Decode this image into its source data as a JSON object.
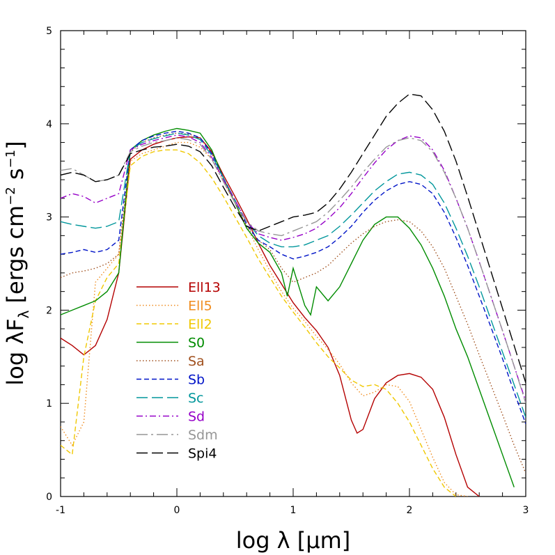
{
  "chart_data": {
    "type": "line",
    "xlabel": "log λ [μm]",
    "ylabel": "log λF",
    "ylabel_sub": "λ",
    "ylabel_units": "[ergs cm",
    "ylabel_exp1": "−2",
    "ylabel_mid": " s",
    "ylabel_exp2": "−1",
    "ylabel_end": "]",
    "xlim": [
      -1,
      3
    ],
    "ylim": [
      0,
      5
    ],
    "xticks": [
      -1,
      0,
      1,
      2,
      3
    ],
    "yticks": [
      0,
      1,
      2,
      3,
      4,
      5
    ],
    "xtick_labels": [
      "-1",
      "0",
      "1",
      "2",
      "3"
    ],
    "ytick_labels": [
      "0",
      "1",
      "2",
      "3",
      "4",
      "5"
    ],
    "grid": false,
    "legend_position": "lower-left",
    "series": [
      {
        "name": "Ell13",
        "color": "#b40000",
        "dash": "solid",
        "x": [
          -1.0,
          -0.9,
          -0.8,
          -0.7,
          -0.6,
          -0.5,
          -0.4,
          -0.3,
          -0.2,
          -0.1,
          0.0,
          0.1,
          0.2,
          0.3,
          0.4,
          0.5,
          0.6,
          0.7,
          0.8,
          0.9,
          1.0,
          1.1,
          1.2,
          1.3,
          1.4,
          1.5,
          1.55,
          1.6,
          1.7,
          1.8,
          1.9,
          2.0,
          2.1,
          2.2,
          2.3,
          2.4,
          2.5,
          2.6
        ],
        "y": [
          1.7,
          1.62,
          1.52,
          1.62,
          1.9,
          2.4,
          3.62,
          3.72,
          3.78,
          3.82,
          3.85,
          3.86,
          3.85,
          3.7,
          3.45,
          3.22,
          2.98,
          2.72,
          2.48,
          2.28,
          2.08,
          1.92,
          1.78,
          1.6,
          1.3,
          0.82,
          0.68,
          0.72,
          1.05,
          1.22,
          1.3,
          1.32,
          1.28,
          1.15,
          0.85,
          0.45,
          0.1,
          0.0
        ]
      },
      {
        "name": "Ell5",
        "color": "#f08c1e",
        "dash": "dotted",
        "x": [
          -1.0,
          -0.9,
          -0.8,
          -0.7,
          -0.6,
          -0.5,
          -0.4,
          -0.3,
          -0.2,
          -0.1,
          0.0,
          0.1,
          0.2,
          0.3,
          0.4,
          0.5,
          0.6,
          0.7,
          0.8,
          0.9,
          1.0,
          1.1,
          1.2,
          1.3,
          1.4,
          1.5,
          1.6,
          1.7,
          1.8,
          1.9,
          2.0,
          2.1,
          2.2,
          2.3,
          2.4,
          2.5
        ],
        "y": [
          0.75,
          0.55,
          0.8,
          2.3,
          2.45,
          2.6,
          3.6,
          3.68,
          3.72,
          3.76,
          3.8,
          3.8,
          3.75,
          3.62,
          3.38,
          3.15,
          2.9,
          2.65,
          2.42,
          2.2,
          2.02,
          1.88,
          1.72,
          1.58,
          1.42,
          1.22,
          1.08,
          1.12,
          1.2,
          1.18,
          1.02,
          0.72,
          0.42,
          0.15,
          0.02,
          0.0
        ]
      },
      {
        "name": "Ell2",
        "color": "#f0c800",
        "dash": "dashed",
        "x": [
          -1.0,
          -0.9,
          -0.8,
          -0.7,
          -0.6,
          -0.5,
          -0.4,
          -0.3,
          -0.2,
          -0.1,
          0.0,
          0.1,
          0.2,
          0.3,
          0.4,
          0.5,
          0.6,
          0.7,
          0.8,
          0.9,
          1.0,
          1.1,
          1.2,
          1.3,
          1.4,
          1.5,
          1.6,
          1.7,
          1.8,
          1.9,
          2.0,
          2.1,
          2.2,
          2.3,
          2.4
        ],
        "y": [
          0.55,
          0.45,
          1.5,
          2.1,
          2.35,
          2.5,
          3.55,
          3.65,
          3.7,
          3.72,
          3.72,
          3.68,
          3.58,
          3.42,
          3.22,
          3.0,
          2.78,
          2.55,
          2.35,
          2.15,
          1.98,
          1.82,
          1.65,
          1.5,
          1.38,
          1.25,
          1.18,
          1.2,
          1.15,
          1.0,
          0.8,
          0.55,
          0.3,
          0.1,
          0.0
        ]
      },
      {
        "name": "S0",
        "color": "#008c00",
        "dash": "solid",
        "x": [
          -1.0,
          -0.9,
          -0.8,
          -0.7,
          -0.6,
          -0.5,
          -0.4,
          -0.3,
          -0.2,
          -0.1,
          0.0,
          0.1,
          0.2,
          0.3,
          0.4,
          0.5,
          0.6,
          0.7,
          0.8,
          0.9,
          0.95,
          1.0,
          1.1,
          1.15,
          1.2,
          1.3,
          1.4,
          1.5,
          1.6,
          1.7,
          1.8,
          1.9,
          2.0,
          2.1,
          2.2,
          2.3,
          2.4,
          2.5,
          2.6,
          2.7,
          2.8,
          2.9
        ],
        "y": [
          1.95,
          2.0,
          2.05,
          2.1,
          2.2,
          2.4,
          3.72,
          3.82,
          3.88,
          3.92,
          3.95,
          3.93,
          3.9,
          3.72,
          3.42,
          3.15,
          2.88,
          2.72,
          2.62,
          2.4,
          2.15,
          2.45,
          2.05,
          1.95,
          2.25,
          2.1,
          2.25,
          2.5,
          2.75,
          2.92,
          3.0,
          3.0,
          2.88,
          2.7,
          2.45,
          2.15,
          1.8,
          1.5,
          1.15,
          0.8,
          0.45,
          0.1
        ]
      },
      {
        "name": "Sa",
        "color": "#a0501e",
        "dash": "dotted",
        "x": [
          -1.0,
          -0.9,
          -0.8,
          -0.7,
          -0.6,
          -0.5,
          -0.4,
          -0.3,
          -0.2,
          -0.1,
          0.0,
          0.1,
          0.2,
          0.3,
          0.4,
          0.5,
          0.6,
          0.7,
          0.8,
          0.9,
          1.0,
          1.1,
          1.2,
          1.3,
          1.4,
          1.5,
          1.6,
          1.7,
          1.8,
          1.9,
          2.0,
          2.1,
          2.2,
          2.3,
          2.4,
          2.5,
          2.6,
          2.7,
          2.8,
          2.9,
          3.0
        ],
        "y": [
          2.35,
          2.4,
          2.42,
          2.45,
          2.5,
          2.6,
          3.7,
          3.8,
          3.85,
          3.88,
          3.9,
          3.89,
          3.85,
          3.68,
          3.4,
          3.15,
          2.9,
          2.75,
          2.65,
          2.45,
          2.3,
          2.35,
          2.4,
          2.48,
          2.6,
          2.72,
          2.82,
          2.9,
          2.95,
          2.97,
          2.95,
          2.85,
          2.68,
          2.45,
          2.15,
          1.85,
          1.52,
          1.2,
          0.88,
          0.55,
          0.25
        ]
      },
      {
        "name": "Sb",
        "color": "#0014c8",
        "dash": "dashed",
        "x": [
          -1.0,
          -0.9,
          -0.8,
          -0.7,
          -0.6,
          -0.5,
          -0.4,
          -0.3,
          -0.2,
          -0.1,
          0.0,
          0.1,
          0.2,
          0.3,
          0.4,
          0.5,
          0.6,
          0.7,
          0.8,
          0.9,
          1.0,
          1.1,
          1.2,
          1.3,
          1.4,
          1.5,
          1.6,
          1.7,
          1.8,
          1.9,
          2.0,
          2.1,
          2.2,
          2.3,
          2.4,
          2.5,
          2.6,
          2.7,
          2.8,
          2.9,
          3.0
        ],
        "y": [
          2.6,
          2.62,
          2.65,
          2.62,
          2.65,
          2.75,
          3.72,
          3.82,
          3.87,
          3.9,
          3.92,
          3.9,
          3.85,
          3.68,
          3.42,
          3.18,
          2.92,
          2.75,
          2.68,
          2.6,
          2.55,
          2.58,
          2.62,
          2.68,
          2.78,
          2.9,
          3.05,
          3.18,
          3.28,
          3.35,
          3.38,
          3.35,
          3.25,
          3.05,
          2.78,
          2.48,
          2.15,
          1.82,
          1.48,
          1.12,
          0.78
        ]
      },
      {
        "name": "Sc",
        "color": "#00969b",
        "dash": "longdash",
        "x": [
          -1.0,
          -0.9,
          -0.8,
          -0.7,
          -0.6,
          -0.5,
          -0.4,
          -0.3,
          -0.2,
          -0.1,
          0.0,
          0.1,
          0.2,
          0.3,
          0.4,
          0.5,
          0.6,
          0.7,
          0.8,
          0.9,
          1.0,
          1.1,
          1.2,
          1.3,
          1.4,
          1.5,
          1.6,
          1.7,
          1.8,
          1.9,
          2.0,
          2.1,
          2.2,
          2.3,
          2.4,
          2.5,
          2.6,
          2.7,
          2.8,
          2.9,
          3.0
        ],
        "y": [
          2.95,
          2.92,
          2.9,
          2.88,
          2.9,
          2.95,
          3.72,
          3.8,
          3.84,
          3.87,
          3.9,
          3.88,
          3.83,
          3.66,
          3.42,
          3.18,
          2.95,
          2.8,
          2.72,
          2.68,
          2.68,
          2.7,
          2.75,
          2.8,
          2.9,
          3.02,
          3.15,
          3.28,
          3.38,
          3.46,
          3.48,
          3.45,
          3.35,
          3.15,
          2.88,
          2.58,
          2.25,
          1.9,
          1.55,
          1.2,
          0.85
        ]
      },
      {
        "name": "Sd",
        "color": "#9600c8",
        "dash": "dashdot",
        "x": [
          -1.0,
          -0.9,
          -0.8,
          -0.7,
          -0.6,
          -0.5,
          -0.4,
          -0.3,
          -0.2,
          -0.1,
          0.0,
          0.1,
          0.2,
          0.3,
          0.4,
          0.5,
          0.6,
          0.7,
          0.8,
          0.9,
          1.0,
          1.1,
          1.2,
          1.3,
          1.4,
          1.5,
          1.6,
          1.7,
          1.8,
          1.9,
          2.0,
          2.1,
          2.2,
          2.3,
          2.4,
          2.5,
          2.6,
          2.7,
          2.8,
          2.9,
          3.0
        ],
        "y": [
          3.2,
          3.25,
          3.22,
          3.15,
          3.2,
          3.25,
          3.72,
          3.78,
          3.82,
          3.85,
          3.88,
          3.86,
          3.8,
          3.64,
          3.4,
          3.18,
          2.95,
          2.82,
          2.78,
          2.75,
          2.78,
          2.82,
          2.88,
          2.98,
          3.1,
          3.25,
          3.42,
          3.58,
          3.72,
          3.82,
          3.87,
          3.85,
          3.72,
          3.5,
          3.2,
          2.88,
          2.52,
          2.15,
          1.78,
          1.4,
          1.02
        ]
      },
      {
        "name": "Sdm",
        "color": "#969696",
        "dash": "longdashdot",
        "x": [
          -1.0,
          -0.9,
          -0.8,
          -0.7,
          -0.6,
          -0.5,
          -0.4,
          -0.3,
          -0.2,
          -0.1,
          0.0,
          0.1,
          0.2,
          0.3,
          0.4,
          0.5,
          0.6,
          0.7,
          0.8,
          0.9,
          1.0,
          1.1,
          1.2,
          1.3,
          1.4,
          1.5,
          1.6,
          1.7,
          1.8,
          1.9,
          2.0,
          2.1,
          2.2,
          2.3,
          2.4,
          2.5,
          2.6,
          2.7,
          2.8,
          2.9,
          3.0
        ],
        "y": [
          3.5,
          3.52,
          3.45,
          3.38,
          3.4,
          3.45,
          3.7,
          3.76,
          3.8,
          3.82,
          3.85,
          3.83,
          3.78,
          3.62,
          3.38,
          3.15,
          2.95,
          2.85,
          2.82,
          2.8,
          2.85,
          2.9,
          2.95,
          3.05,
          3.18,
          3.32,
          3.48,
          3.62,
          3.75,
          3.82,
          3.85,
          3.82,
          3.7,
          3.48,
          3.2,
          2.88,
          2.52,
          2.15,
          1.78,
          1.4,
          1.0
        ]
      },
      {
        "name": "Spi4",
        "color": "#000000",
        "dash": "longdash",
        "x": [
          -1.0,
          -0.9,
          -0.8,
          -0.7,
          -0.6,
          -0.5,
          -0.4,
          -0.3,
          -0.2,
          -0.1,
          0.0,
          0.1,
          0.2,
          0.3,
          0.4,
          0.5,
          0.6,
          0.7,
          0.8,
          0.9,
          1.0,
          1.1,
          1.2,
          1.3,
          1.4,
          1.5,
          1.6,
          1.7,
          1.8,
          1.9,
          2.0,
          2.1,
          2.2,
          2.3,
          2.4,
          2.5,
          2.6,
          2.7,
          2.8,
          2.9,
          3.0
        ],
        "y": [
          3.45,
          3.48,
          3.45,
          3.38,
          3.4,
          3.45,
          3.68,
          3.72,
          3.75,
          3.76,
          3.78,
          3.76,
          3.7,
          3.55,
          3.32,
          3.1,
          2.9,
          2.85,
          2.9,
          2.95,
          3.0,
          3.02,
          3.05,
          3.15,
          3.3,
          3.48,
          3.68,
          3.88,
          4.08,
          4.22,
          4.32,
          4.3,
          4.15,
          3.92,
          3.6,
          3.22,
          2.82,
          2.42,
          2.02,
          1.62,
          1.22
        ]
      }
    ]
  }
}
